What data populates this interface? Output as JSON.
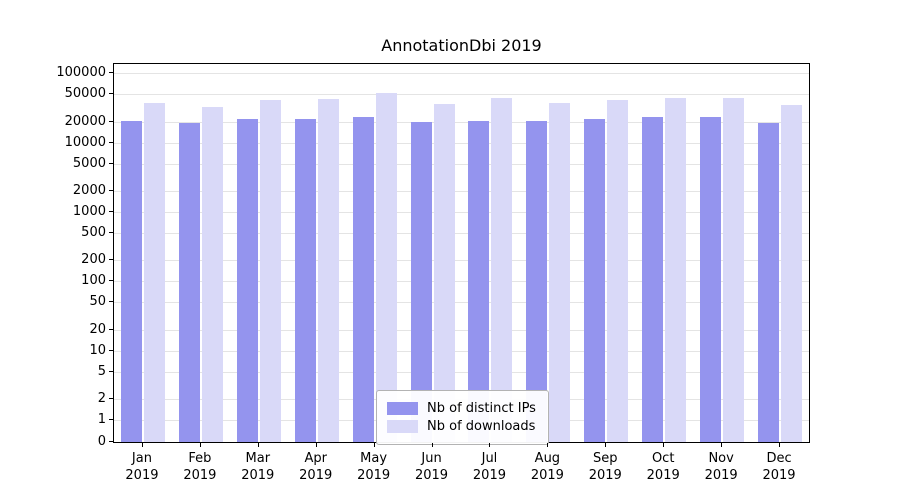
{
  "chart_data": {
    "type": "bar",
    "title": "AnnotationDbi 2019",
    "xlabel": "",
    "ylabel": "",
    "yscale": "log",
    "grid": true,
    "legend_position": "lower center",
    "yticks": [
      0,
      1,
      2,
      5,
      10,
      20,
      50,
      100,
      200,
      500,
      1000,
      2000,
      5000,
      10000,
      20000,
      50000,
      100000
    ],
    "ylim": [
      0,
      100000
    ],
    "categories": [
      "Jan\n2019",
      "Feb\n2019",
      "Mar\n2019",
      "Apr\n2019",
      "May\n2019",
      "Jun\n2019",
      "Jul\n2019",
      "Aug\n2019",
      "Sep\n2019",
      "Oct\n2019",
      "Nov\n2019",
      "Dec\n2019"
    ],
    "series": [
      {
        "name": "Nb of distinct IPs",
        "color": "#9494ee",
        "values": [
          20800,
          19400,
          22100,
          22000,
          23900,
          19600,
          20300,
          20900,
          22200,
          23400,
          23300,
          19500
        ]
      },
      {
        "name": "Nb of downloads",
        "color": "#d9d9f8",
        "values": [
          37500,
          33000,
          41000,
          43000,
          53000,
          36500,
          43500,
          37500,
          42000,
          44500,
          44000,
          34500
        ]
      }
    ]
  }
}
